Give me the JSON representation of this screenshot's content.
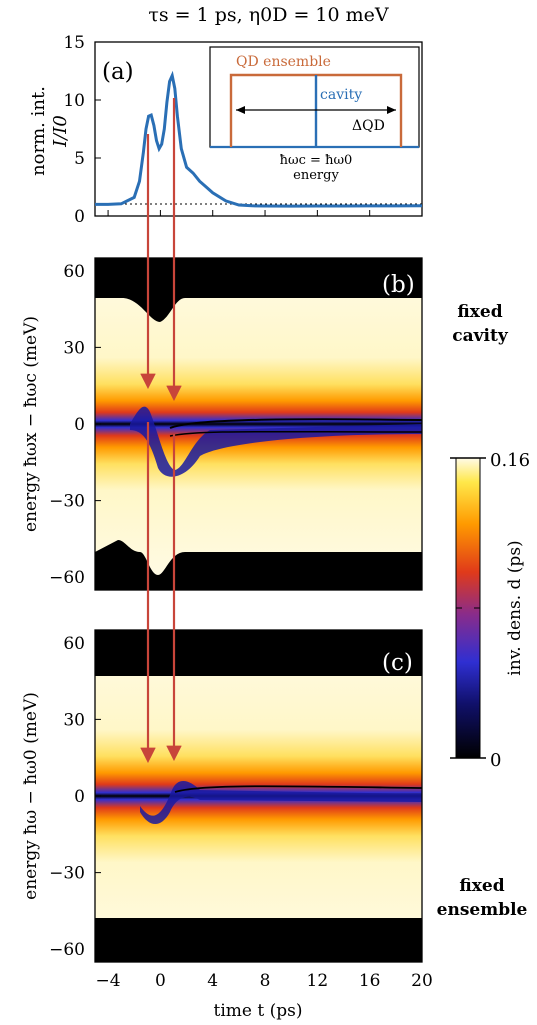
{
  "header": {
    "title": "τs = 1 ps, η0D = 10 meV"
  },
  "side_labels": {
    "b_top": "fixed",
    "b_bottom": "cavity",
    "c_top": "fixed",
    "c_bottom": "ensemble"
  },
  "colors": {
    "curve": "#2a6fb5",
    "arrow": "#c8453a",
    "inset_box": "#c96a3a",
    "inset_cavity": "#2a6fb5"
  },
  "chart_data": [
    {
      "type": "line",
      "panel_label": "(a)",
      "ylabel_line1": "norm. int.",
      "ylabel_line2": "I/I0",
      "xlim": [
        -5,
        20
      ],
      "ylim": [
        0,
        15
      ],
      "yticks": [
        "0",
        "5",
        "10",
        "15"
      ],
      "grid": false,
      "baseline": 1,
      "series": [
        {
          "x": [
            -5,
            -4,
            -3,
            -2,
            -1.6,
            -1.3,
            -1.1,
            -0.9,
            -0.7,
            -0.5,
            -0.3,
            -0.1,
            0.1,
            0.3,
            0.5,
            0.7,
            0.9,
            1.1,
            1.3,
            1.6,
            2,
            2.5,
            3,
            3.5,
            4,
            5,
            6,
            7,
            8,
            10,
            12,
            14,
            16,
            18,
            20
          ],
          "y": [
            1.0,
            1.0,
            1.05,
            1.6,
            3.0,
            5.5,
            7.5,
            8.6,
            8.7,
            7.8,
            6.5,
            5.8,
            6.2,
            7.5,
            9.8,
            11.6,
            12.1,
            11.0,
            8.6,
            5.8,
            4.2,
            3.7,
            3.0,
            2.5,
            2.0,
            1.3,
            0.95,
            0.88,
            0.86,
            0.85,
            0.86,
            0.86,
            0.87,
            0.87,
            0.88
          ]
        }
      ],
      "inset": {
        "title": "QD ensemble",
        "cavity_label": "cavity",
        "width_label": "ΔQD",
        "xaxis_line1": "ħωc = ħω0",
        "xaxis_line2": "energy"
      }
    },
    {
      "type": "heatmap",
      "panel_label": "(b)",
      "ylabel": "energy ħωx − ħωc (meV)",
      "xlim": [
        -5,
        20
      ],
      "ylim": [
        -65,
        65
      ],
      "yticks": [
        "−60",
        "−30",
        "0",
        "30",
        "60"
      ],
      "description_free": true
    },
    {
      "type": "heatmap",
      "panel_label": "(c)",
      "ylabel": "energy ħω − ħω0 (meV)",
      "xlabel": "time t (ps)",
      "xlim": [
        -5,
        20
      ],
      "ylim": [
        -65,
        65
      ],
      "xticks": [
        "−4",
        "0",
        "4",
        "8",
        "12",
        "16",
        "20"
      ],
      "yticks": [
        "−60",
        "−30",
        "0",
        "30",
        "60"
      ]
    },
    {
      "type": "colorbar",
      "label": "inv. dens. d (ps)",
      "max_label": "0.16",
      "min_label": "0",
      "range": [
        0,
        0.16
      ]
    }
  ]
}
